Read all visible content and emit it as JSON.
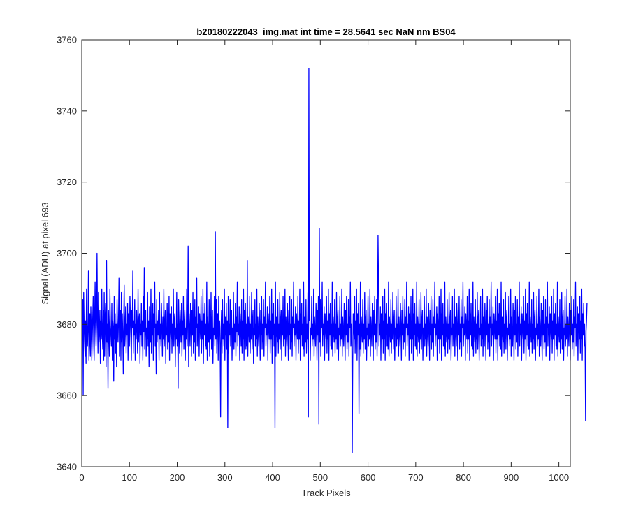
{
  "chart_data": {
    "type": "line",
    "title": "b20180222043_img.mat int time = 28.5641 sec  NaN nm BS04",
    "xlabel": "Track Pixels",
    "ylabel": "Signal (ADU) at pixel 693",
    "xlim": [
      0,
      1024
    ],
    "ylim": [
      3640,
      3760
    ],
    "x_ticks": [
      0,
      100,
      200,
      300,
      400,
      500,
      600,
      700,
      800,
      900,
      1000
    ],
    "y_ticks": [
      3640,
      3660,
      3680,
      3700,
      3720,
      3740,
      3760
    ],
    "grid": false,
    "line_color": "#0000ff",
    "series": [
      {
        "x_start": 1,
        "x_step": 1,
        "values": [
          3676,
          3687,
          3660,
          3689,
          3680,
          3675,
          3671,
          3681,
          3669,
          3690,
          3680,
          3674,
          3679,
          3695,
          3670,
          3675,
          3683,
          3671,
          3685,
          3678,
          3670,
          3676,
          3682,
          3688,
          3675,
          3670,
          3681,
          3692,
          3679,
          3674,
          3680,
          3700,
          3681,
          3672,
          3689,
          3675,
          3678,
          3684,
          3669,
          3681,
          3676,
          3690,
          3677,
          3673,
          3684,
          3670,
          3689,
          3671,
          3682,
          3686,
          3668,
          3698,
          3675,
          3680,
          3662,
          3684,
          3678,
          3671,
          3690,
          3680,
          3677,
          3674,
          3686,
          3670,
          3681,
          3679,
          3664,
          3688,
          3676,
          3683,
          3672,
          3680,
          3668,
          3687,
          3679,
          3675,
          3681,
          3693,
          3671,
          3679,
          3684,
          3670,
          3689,
          3675,
          3683,
          3677,
          3666,
          3682,
          3691,
          3674,
          3679,
          3685,
          3672,
          3680,
          3677,
          3686,
          3670,
          3683,
          3679,
          3674,
          3688,
          3681,
          3676,
          3670,
          3684,
          3679,
          3695,
          3672,
          3681,
          3677,
          3687,
          3670,
          3680,
          3676,
          3684,
          3679,
          3672,
          3690,
          3675,
          3681,
          3683,
          3669,
          3680,
          3677,
          3686,
          3674,
          3681,
          3670,
          3688,
          3678,
          3696,
          3673,
          3680,
          3684,
          3671,
          3679,
          3676,
          3689,
          3674,
          3681,
          3668,
          3685,
          3679,
          3675,
          3690,
          3672,
          3680,
          3677,
          3686,
          3670,
          3683,
          3679,
          3692,
          3674,
          3680,
          3666,
          3687,
          3675,
          3681,
          3677,
          3684,
          3670,
          3689,
          3676,
          3680,
          3674,
          3686,
          3679,
          3671,
          3682,
          3676,
          3690,
          3674,
          3680,
          3684,
          3669,
          3679,
          3677,
          3686,
          3673,
          3681,
          3675,
          3688,
          3670,
          3683,
          3679,
          3676,
          3685,
          3672,
          3680,
          3677,
          3690,
          3674,
          3681,
          3683,
          3668,
          3679,
          3676,
          3689,
          3674,
          3680,
          3662,
          3687,
          3678,
          3672,
          3684,
          3679,
          3675,
          3686,
          3671,
          3681,
          3677,
          3688,
          3673,
          3680,
          3684,
          3670,
          3679,
          3676,
          3690,
          3674,
          3681,
          3702,
          3668,
          3683,
          3678,
          3674,
          3686,
          3679,
          3671,
          3684,
          3677,
          3689,
          3672,
          3680,
          3675,
          3687,
          3670,
          3682,
          3679,
          3693,
          3674,
          3680,
          3677,
          3685,
          3671,
          3683,
          3679,
          3676,
          3688,
          3672,
          3681,
          3676,
          3690,
          3669,
          3683,
          3677,
          3686,
          3674,
          3680,
          3673,
          3692,
          3670,
          3682,
          3678,
          3675,
          3687,
          3671,
          3680,
          3676,
          3689,
          3673,
          3681,
          3684,
          3669,
          3679,
          3677,
          3688,
          3674,
          3706,
          3676,
          3687,
          3672,
          3680,
          3683,
          3670,
          3688,
          3677,
          3681,
          3674,
          3654,
          3679,
          3684,
          3672,
          3687,
          3676,
          3680,
          3674,
          3690,
          3670,
          3682,
          3677,
          3686,
          3673,
          3681,
          3651,
          3688,
          3672,
          3680,
          3677,
          3687,
          3674,
          3681,
          3684,
          3670,
          3679,
          3676,
          3689,
          3673,
          3680,
          3675,
          3686,
          3671,
          3682,
          3678,
          3692,
          3674,
          3680,
          3677,
          3685,
          3670,
          3683,
          3679,
          3674,
          3687,
          3672,
          3681,
          3676,
          3690,
          3670,
          3684,
          3677,
          3686,
          3673,
          3680,
          3674,
          3698,
          3671,
          3682,
          3678,
          3675,
          3688,
          3672,
          3680,
          3676,
          3689,
          3673,
          3681,
          3684,
          3669,
          3679,
          3677,
          3687,
          3674,
          3680,
          3676,
          3690,
          3671,
          3682,
          3678,
          3674,
          3686,
          3679,
          3670,
          3684,
          3677,
          3688,
          3673,
          3680,
          3675,
          3687,
          3671,
          3682,
          3679,
          3692,
          3674,
          3680,
          3677,
          3685,
          3670,
          3683,
          3679,
          3676,
          3688,
          3672,
          3681,
          3676,
          3690,
          3669,
          3683,
          3677,
          3686,
          3674,
          3680,
          3651,
          3692,
          3671,
          3682,
          3678,
          3675,
          3687,
          3672,
          3680,
          3676,
          3689,
          3673,
          3681,
          3684,
          3670,
          3679,
          3677,
          3688,
          3674,
          3680,
          3676,
          3690,
          3671,
          3682,
          3678,
          3674,
          3686,
          3679,
          3670,
          3684,
          3677,
          3688,
          3673,
          3680,
          3675,
          3687,
          3671,
          3682,
          3679,
          3692,
          3674,
          3680,
          3677,
          3685,
          3670,
          3683,
          3679,
          3676,
          3688,
          3672,
          3681,
          3676,
          3690,
          3670,
          3683,
          3677,
          3686,
          3674,
          3680,
          3673,
          3692,
          3671,
          3682,
          3678,
          3675,
          3687,
          3672,
          3680,
          3676,
          3689,
          3654,
          3752,
          3681,
          3684,
          3670,
          3679,
          3677,
          3688,
          3674,
          3680,
          3676,
          3690,
          3671,
          3682,
          3678,
          3674,
          3686,
          3679,
          3670,
          3684,
          3677,
          3688,
          3652,
          3707,
          3675,
          3687,
          3671,
          3682,
          3679,
          3692,
          3674,
          3680,
          3677,
          3685,
          3670,
          3683,
          3679,
          3676,
          3688,
          3672,
          3681,
          3676,
          3690,
          3670,
          3683,
          3677,
          3686,
          3674,
          3680,
          3673,
          3692,
          3671,
          3682,
          3678,
          3675,
          3687,
          3672,
          3680,
          3676,
          3689,
          3673,
          3681,
          3684,
          3670,
          3679,
          3677,
          3688,
          3674,
          3680,
          3676,
          3690,
          3671,
          3682,
          3678,
          3674,
          3686,
          3679,
          3670,
          3684,
          3677,
          3688,
          3673,
          3680,
          3675,
          3687,
          3671,
          3682,
          3679,
          3692,
          3674,
          3680,
          3677,
          3644,
          3670,
          3683,
          3679,
          3676,
          3688,
          3672,
          3681,
          3676,
          3690,
          3670,
          3683,
          3677,
          3686,
          3655,
          3680,
          3673,
          3692,
          3671,
          3682,
          3678,
          3675,
          3687,
          3672,
          3680,
          3676,
          3689,
          3673,
          3681,
          3684,
          3670,
          3679,
          3677,
          3688,
          3674,
          3680,
          3676,
          3690,
          3671,
          3682,
          3678,
          3674,
          3686,
          3679,
          3670,
          3684,
          3677,
          3688,
          3673,
          3680,
          3675,
          3687,
          3671,
          3682,
          3705,
          3692,
          3674,
          3680,
          3677,
          3685,
          3670,
          3683,
          3679,
          3676,
          3688,
          3672,
          3681,
          3676,
          3690,
          3670,
          3683,
          3677,
          3686,
          3674,
          3680,
          3673,
          3692,
          3671,
          3682,
          3678,
          3675,
          3687,
          3672,
          3680,
          3676,
          3689,
          3673,
          3681,
          3684,
          3670,
          3679,
          3677,
          3688,
          3674,
          3680,
          3676,
          3690,
          3671,
          3682,
          3678,
          3674,
          3686,
          3679,
          3670,
          3684,
          3677,
          3688,
          3673,
          3680,
          3675,
          3687,
          3671,
          3682,
          3679,
          3692,
          3674,
          3680,
          3677,
          3685,
          3670,
          3683,
          3679,
          3676,
          3688,
          3672,
          3681,
          3676,
          3690,
          3670,
          3683,
          3677,
          3686,
          3674,
          3680,
          3673,
          3692,
          3671,
          3682,
          3678,
          3675,
          3687,
          3672,
          3680,
          3676,
          3689,
          3673,
          3681,
          3684,
          3670,
          3679,
          3677,
          3688,
          3674,
          3680,
          3676,
          3690,
          3671,
          3682,
          3678,
          3674,
          3686,
          3679,
          3670,
          3684,
          3677,
          3688,
          3673,
          3680,
          3675,
          3687,
          3671,
          3682,
          3679,
          3692,
          3674,
          3680,
          3677,
          3685,
          3670,
          3683,
          3679,
          3676,
          3688,
          3672,
          3681,
          3676,
          3690,
          3670,
          3683,
          3677,
          3686,
          3674,
          3680,
          3673,
          3692,
          3671,
          3682,
          3678,
          3675,
          3687,
          3672,
          3680,
          3676,
          3689,
          3673,
          3681,
          3684,
          3670,
          3679,
          3677,
          3688,
          3674,
          3680,
          3676,
          3690,
          3671,
          3682,
          3678,
          3674,
          3686,
          3679,
          3670,
          3684,
          3677,
          3688,
          3673,
          3680,
          3675,
          3687,
          3671,
          3682,
          3679,
          3692,
          3674,
          3680,
          3677,
          3685,
          3670,
          3683,
          3679,
          3676,
          3688,
          3672,
          3681,
          3676,
          3690,
          3670,
          3683,
          3677,
          3686,
          3674,
          3680,
          3673,
          3692,
          3671,
          3682,
          3678,
          3675,
          3687,
          3672,
          3680,
          3676,
          3689,
          3673,
          3681,
          3684,
          3670,
          3679,
          3677,
          3688,
          3674,
          3680,
          3676,
          3690,
          3671,
          3682,
          3678,
          3674,
          3686,
          3679,
          3670,
          3684,
          3677,
          3688,
          3673,
          3680,
          3675,
          3687,
          3671,
          3682,
          3679,
          3692,
          3674,
          3680,
          3677,
          3685,
          3670,
          3683,
          3679,
          3676,
          3688,
          3672,
          3681,
          3676,
          3690,
          3670,
          3683,
          3677,
          3686,
          3674,
          3680,
          3673,
          3692,
          3671,
          3682,
          3678,
          3675,
          3687,
          3672,
          3680,
          3676,
          3689,
          3673,
          3681,
          3684,
          3670,
          3679,
          3677,
          3688,
          3674,
          3680,
          3676,
          3690,
          3671,
          3682,
          3678,
          3674,
          3686,
          3679,
          3670,
          3684,
          3677,
          3688,
          3673,
          3680,
          3675,
          3687,
          3671,
          3682,
          3679,
          3692,
          3674,
          3680,
          3677,
          3685,
          3670,
          3683,
          3679,
          3676,
          3688,
          3672,
          3681,
          3676,
          3690,
          3670,
          3683,
          3677,
          3686,
          3674,
          3680,
          3673,
          3692,
          3671,
          3682,
          3678,
          3675,
          3687,
          3672,
          3680,
          3676,
          3689,
          3673,
          3681,
          3684,
          3670,
          3679,
          3677,
          3688,
          3674,
          3680,
          3676,
          3690,
          3671,
          3682,
          3678,
          3674,
          3686,
          3679,
          3670,
          3684,
          3677,
          3688,
          3673,
          3680,
          3675,
          3687,
          3671,
          3682,
          3679,
          3692,
          3674,
          3680,
          3677,
          3685,
          3670,
          3683,
          3679,
          3676,
          3688,
          3672,
          3681,
          3676,
          3690,
          3670,
          3683,
          3677,
          3686,
          3674,
          3680,
          3673,
          3692,
          3671,
          3682,
          3678,
          3675,
          3687,
          3672,
          3680,
          3676,
          3689,
          3673,
          3681,
          3684,
          3670,
          3679,
          3677,
          3688,
          3674,
          3680,
          3676,
          3690,
          3671,
          3682,
          3678,
          3674,
          3686,
          3679,
          3670,
          3684,
          3677,
          3688,
          3673,
          3680,
          3675,
          3687,
          3671,
          3682,
          3679,
          3692,
          3674,
          3680,
          3677,
          3685,
          3670,
          3683,
          3679,
          3676,
          3688,
          3672,
          3681,
          3676,
          3690,
          3670,
          3683,
          3677,
          3686,
          3674,
          3680,
          3673,
          3653,
          3678,
          3681,
          3686
        ]
      }
    ]
  }
}
